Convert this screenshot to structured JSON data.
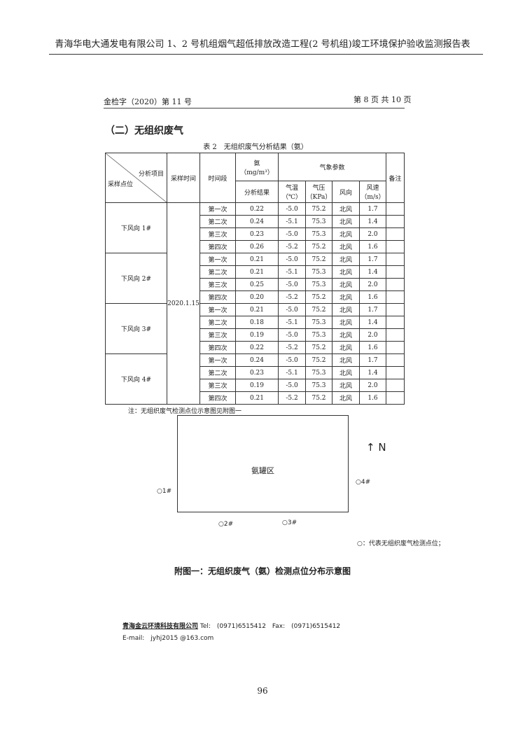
{
  "header": {
    "title": "青海华电大通发电有限公司 1、2 号机组烟气超低排放改造工程(2 号机组)竣工环境保护验收监测报告表"
  },
  "report": {
    "doc_no": "金检字（2020）第 11 号",
    "page_of": "第 8 页 共 10 页",
    "section": "（二）无组织废气",
    "table_caption": "表 2　无组织废气分析结果（氨）"
  },
  "table": {
    "h_item": "分析项目",
    "h_site": "采样点位",
    "h_date": "采样时间",
    "h_period": "时间段",
    "h_ammonia": "氨",
    "h_unit": "（mg/m³）",
    "h_result": "分析结果",
    "h_weather": "气象参数",
    "h_temp": "气温",
    "h_temp_unit": "（℃）",
    "h_press": "气压",
    "h_press_unit": "（KPa）",
    "h_dir": "风向",
    "h_speed": "风速",
    "h_speed_unit": "（m/s）",
    "h_note": "备注",
    "date": "2020.1.15",
    "sites": [
      {
        "name": "下风向 1#",
        "rows": [
          [
            "第一次",
            "0.22",
            "-5.0",
            "75.2",
            "北风",
            "1.7"
          ],
          [
            "第二次",
            "0.24",
            "-5.1",
            "75.3",
            "北风",
            "1.4"
          ],
          [
            "第三次",
            "0.23",
            "-5.0",
            "75.3",
            "北风",
            "2.0"
          ],
          [
            "第四次",
            "0.26",
            "-5.2",
            "75.2",
            "北风",
            "1.6"
          ]
        ]
      },
      {
        "name": "下风向 2#",
        "rows": [
          [
            "第一次",
            "0.21",
            "-5.0",
            "75.2",
            "北风",
            "1.7"
          ],
          [
            "第二次",
            "0.21",
            "-5.1",
            "75.3",
            "北风",
            "1.4"
          ],
          [
            "第三次",
            "0.25",
            "-5.0",
            "75.3",
            "北风",
            "2.0"
          ],
          [
            "第四次",
            "0.20",
            "-5.2",
            "75.2",
            "北风",
            "1.6"
          ]
        ]
      },
      {
        "name": "下风向 3#",
        "rows": [
          [
            "第一次",
            "0.21",
            "-5.0",
            "75.2",
            "北风",
            "1.7"
          ],
          [
            "第二次",
            "0.18",
            "-5.1",
            "75.3",
            "北风",
            "1.4"
          ],
          [
            "第三次",
            "0.19",
            "-5.0",
            "75.3",
            "北风",
            "2.0"
          ],
          [
            "第四次",
            "0.22",
            "-5.2",
            "75.2",
            "北风",
            "1.6"
          ]
        ]
      },
      {
        "name": "下风向 4#",
        "rows": [
          [
            "第一次",
            "0.24",
            "-5.0",
            "75.2",
            "北风",
            "1.7"
          ],
          [
            "第二次",
            "0.23",
            "-5.1",
            "75.3",
            "北风",
            "1.4"
          ],
          [
            "第三次",
            "0.19",
            "-5.0",
            "75.3",
            "北风",
            "2.0"
          ],
          [
            "第四次",
            "0.21",
            "-5.2",
            "75.2",
            "北风",
            "1.6"
          ]
        ]
      }
    ]
  },
  "note": "注：无组织废气检测点位示意图见附图一",
  "figure": {
    "area": "氨罐区",
    "north": "↑ N",
    "p1": "○1#",
    "p2": "○2#",
    "p3": "○3#",
    "p4": "○4#",
    "legend": "○：代表无组织废气检测点位；",
    "caption": "附图一：无组织废气（氨）检测点位分布示意图"
  },
  "footer": {
    "company": "青海金云环境科技有限公司",
    "tel": " Tel:　(0971)6515412　Fax:　(0971)6515412",
    "email": "E-mail:　jyhj2015 @163.com"
  },
  "page_number": "96"
}
